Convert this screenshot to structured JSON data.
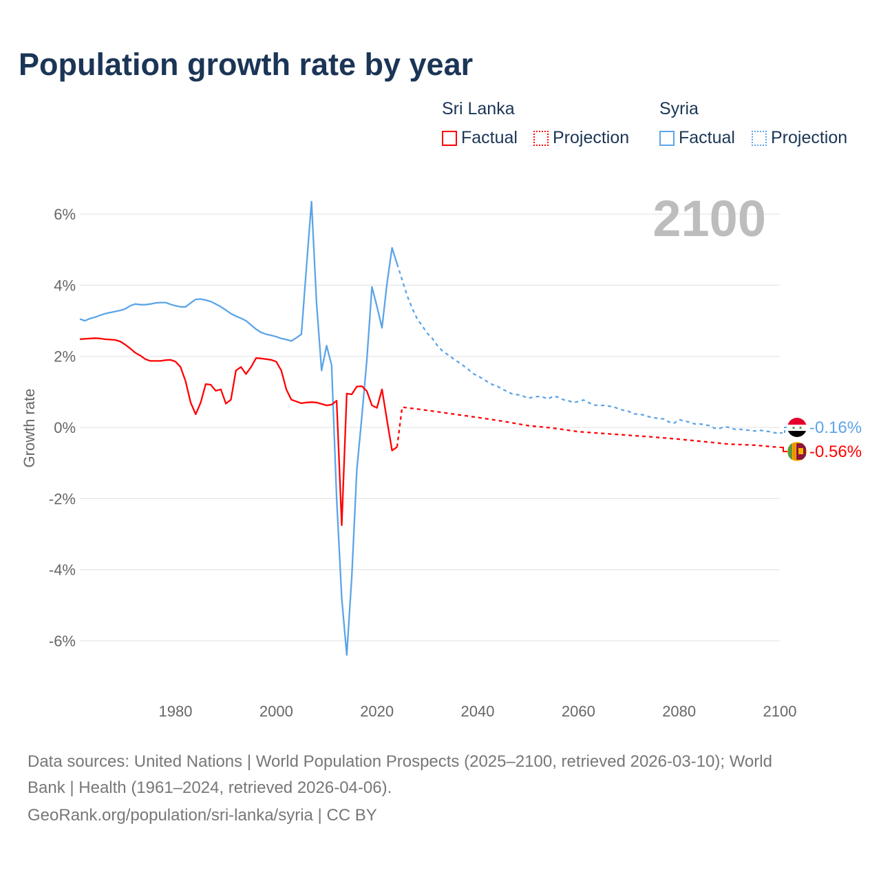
{
  "title": "Population growth rate by year",
  "legend": {
    "groups": [
      {
        "country": "Sri Lanka",
        "factual": "Factual",
        "projection": "Projection",
        "color": "#ff0000"
      },
      {
        "country": "Syria",
        "factual": "Factual",
        "projection": "Projection",
        "color": "#5ba4e8"
      }
    ]
  },
  "year_label": "2100",
  "end_labels": {
    "syria": "-0.16%",
    "sri_lanka": "-0.56%"
  },
  "footer": {
    "line1": "Data sources: United Nations | World Population Prospects (2025–2100, retrieved 2026-03-10); World",
    "line2": "Bank | Health (1961–2024, retrieved 2026-04-06).",
    "line3": "GeoRank.org/population/sri-lanka/syria | CC BY"
  },
  "chart_data": {
    "type": "line",
    "title": "Population growth rate by year",
    "xlabel": "",
    "ylabel": "Growth rate",
    "xlim": [
      1961,
      2100
    ],
    "ylim": [
      -7,
      7
    ],
    "x_ticks": [
      1980,
      2000,
      2020,
      2040,
      2060,
      2080,
      2100
    ],
    "y_ticks": [
      6,
      4,
      2,
      0,
      -2,
      -4,
      -6
    ],
    "y_tick_labels": [
      "6%",
      "4%",
      "2%",
      "0%",
      "-2%",
      "-4%",
      "-6%"
    ],
    "grid": true,
    "series": [
      {
        "name": "Syria (Factual)",
        "color": "#5ba4e8",
        "dashed": false,
        "x_start": 1961,
        "values": [
          3.05,
          3.0,
          3.06,
          3.1,
          3.15,
          3.2,
          3.23,
          3.26,
          3.29,
          3.33,
          3.42,
          3.47,
          3.45,
          3.45,
          3.47,
          3.5,
          3.51,
          3.51,
          3.46,
          3.42,
          3.39,
          3.39,
          3.5,
          3.6,
          3.61,
          3.58,
          3.54,
          3.47,
          3.39,
          3.3,
          3.2,
          3.13,
          3.07,
          3.0,
          2.88,
          2.76,
          2.67,
          2.62,
          2.59,
          2.55,
          2.5,
          2.47,
          2.43,
          2.52,
          2.62,
          4.5,
          6.35,
          3.5,
          1.6,
          2.3,
          1.75,
          -2.0,
          -4.8,
          -6.4,
          -4.2,
          -1.2,
          0.3,
          1.9,
          3.95,
          3.4,
          2.8,
          4.05,
          5.05,
          4.6
        ]
      },
      {
        "name": "Syria (Projection)",
        "color": "#5ba4e8",
        "dashed": true,
        "x_start": 2024,
        "values": [
          4.6,
          4.15,
          3.7,
          3.35,
          3.05,
          2.85,
          2.65,
          2.5,
          2.3,
          2.15,
          2.05,
          1.95,
          1.85,
          1.75,
          1.65,
          1.52,
          1.45,
          1.37,
          1.28,
          1.2,
          1.15,
          1.07,
          1.0,
          0.93,
          0.92,
          0.88,
          0.82,
          0.85,
          0.87,
          0.85,
          0.8,
          0.88,
          0.85,
          0.78,
          0.75,
          0.7,
          0.73,
          0.77,
          0.7,
          0.63,
          0.62,
          0.62,
          0.6,
          0.58,
          0.52,
          0.48,
          0.45,
          0.38,
          0.37,
          0.35,
          0.3,
          0.27,
          0.25,
          0.24,
          0.15,
          0.12,
          0.22,
          0.18,
          0.15,
          0.1,
          0.1,
          0.08,
          0.05,
          -0.02,
          -0.03,
          0.02,
          0.0,
          -0.05,
          -0.05,
          -0.07,
          -0.08,
          -0.1,
          -0.08,
          -0.1,
          -0.12,
          -0.15,
          -0.16
        ]
      },
      {
        "name": "Sri Lanka (Factual)",
        "color": "#ff0000",
        "dashed": false,
        "x_start": 1961,
        "values": [
          2.48,
          2.49,
          2.5,
          2.51,
          2.5,
          2.48,
          2.47,
          2.46,
          2.42,
          2.33,
          2.22,
          2.1,
          2.02,
          1.92,
          1.87,
          1.87,
          1.87,
          1.89,
          1.9,
          1.85,
          1.7,
          1.3,
          0.7,
          0.37,
          0.7,
          1.22,
          1.2,
          1.03,
          1.07,
          0.67,
          0.78,
          1.6,
          1.7,
          1.5,
          1.7,
          1.95,
          1.94,
          1.92,
          1.9,
          1.85,
          1.6,
          1.07,
          0.78,
          0.73,
          0.68,
          0.7,
          0.71,
          0.7,
          0.66,
          0.62,
          0.64,
          0.75,
          -2.75,
          0.95,
          0.93,
          1.15,
          1.16,
          1.02,
          0.62,
          0.55,
          1.07,
          0.2,
          -0.65,
          -0.55
        ]
      },
      {
        "name": "Sri Lanka (Projection)",
        "color": "#ff0000",
        "dashed": true,
        "x": [
          2024,
          2025,
          2030,
          2035,
          2040,
          2046,
          2050,
          2055,
          2060,
          2065,
          2070,
          2075,
          2080,
          2085,
          2090,
          2095,
          2099,
          2100
        ],
        "values": [
          -0.55,
          0.57,
          0.48,
          0.38,
          0.28,
          0.15,
          0.05,
          -0.02,
          -0.12,
          -0.17,
          -0.22,
          -0.27,
          -0.33,
          -0.4,
          -0.47,
          -0.5,
          -0.55,
          -0.56
        ]
      }
    ]
  }
}
